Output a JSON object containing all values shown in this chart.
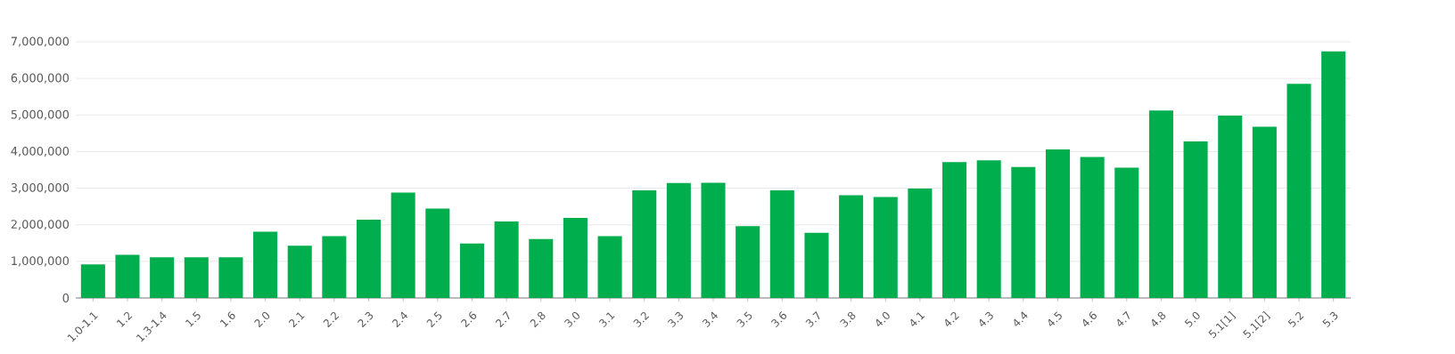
{
  "chart_data": {
    "type": "bar",
    "categories": [
      "1.0-1.1",
      "1.2",
      "1.3-1.4",
      "1.5",
      "1.6",
      "2.0",
      "2.1",
      "2.2",
      "2.3",
      "2.4",
      "2.5",
      "2.6",
      "2.7",
      "2.8",
      "3.0",
      "3.1",
      "3.2",
      "3.3",
      "3.4",
      "3.5",
      "3.6",
      "3.7",
      "3.8",
      "4.0",
      "4.1",
      "4.2",
      "4.3",
      "4.4",
      "4.5",
      "4.6",
      "4.7",
      "4.8",
      "5.0",
      "5.1[1]",
      "5.1[2]",
      "5.2",
      "5.3"
    ],
    "values": [
      920000,
      1180000,
      1110000,
      1110000,
      1110000,
      1810000,
      1430000,
      1690000,
      2140000,
      2880000,
      2440000,
      1490000,
      2090000,
      1610000,
      2190000,
      1690000,
      2940000,
      3140000,
      3150000,
      1960000,
      2940000,
      1780000,
      2810000,
      2760000,
      2990000,
      3710000,
      3760000,
      3580000,
      4060000,
      3850000,
      3560000,
      5120000,
      4280000,
      4980000,
      4680000,
      5850000,
      6740000
    ],
    "color": "#00ae4d",
    "ylim": [
      0,
      7000000
    ],
    "yticks": [
      0,
      {
        "value": 1000000,
        "label": "1,000,000"
      },
      {
        "value": 2000000,
        "label": "2,000,000"
      },
      {
        "value": 3000000,
        "label": "3,000,000"
      },
      {
        "value": 4000000,
        "label": "4,000,000"
      },
      {
        "value": 5000000,
        "label": "5,000,000"
      },
      {
        "value": 6000000,
        "label": "6,000,000"
      },
      {
        "value": 7000000,
        "label": "7,000,000"
      }
    ],
    "grid": "y"
  }
}
